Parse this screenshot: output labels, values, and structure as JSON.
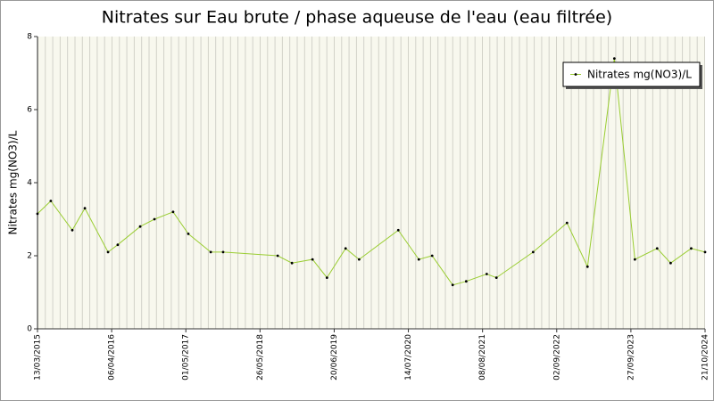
{
  "chart_data": {
    "type": "line",
    "title": "Nitrates sur Eau brute / phase aqueuse de l'eau (eau filtrée)",
    "y_label": "Nitrates mg(NO3)/L",
    "x": [
      "13/03/2015",
      "22/05/2015",
      "12/09/2015",
      "17/11/2015",
      "18/03/2016",
      "08/05/2016",
      "03/09/2016",
      "17/11/2016",
      "23/02/2017",
      "14/05/2017",
      "09/09/2017",
      "13/11/2017",
      "27/08/2018",
      "10/11/2018",
      "26/02/2019",
      "13/05/2019",
      "19/08/2019",
      "29/10/2019",
      "22/05/2020",
      "07/09/2020",
      "16/11/2020",
      "04/03/2021",
      "14/05/2021",
      "30/08/2021",
      "20/10/2021",
      "01/05/2022",
      "26/10/2022",
      "11/02/2023",
      "02/07/2023",
      "18/10/2023",
      "12/02/2024",
      "23/04/2024",
      "09/08/2024",
      "21/10/2024"
    ],
    "series": [
      {
        "name": "Nitrates mg(NO3)/L",
        "color": "#9acd32",
        "values": [
          3.15,
          3.5,
          2.7,
          3.3,
          2.1,
          2.3,
          2.8,
          3.0,
          3.2,
          2.6,
          2.1,
          2.1,
          2.0,
          1.8,
          1.9,
          1.4,
          2.2,
          1.9,
          2.7,
          1.9,
          2.0,
          1.2,
          1.3,
          1.5,
          1.4,
          2.1,
          2.9,
          1.7,
          7.4,
          1.9,
          2.2,
          1.8,
          2.2,
          2.1
        ]
      }
    ],
    "xlim": [
      "13/03/2015",
      "21/10/2024"
    ],
    "xticks": [
      "13/03/2015",
      "06/04/2016",
      "01/05/2017",
      "26/05/2018",
      "20/06/2019",
      "14/07/2020",
      "08/08/2021",
      "02/09/2022",
      "27/09/2023",
      "21/10/2024"
    ],
    "ylim": [
      0,
      8
    ],
    "yticks": [
      0,
      2,
      4,
      6,
      8
    ],
    "legend": "top-right"
  }
}
